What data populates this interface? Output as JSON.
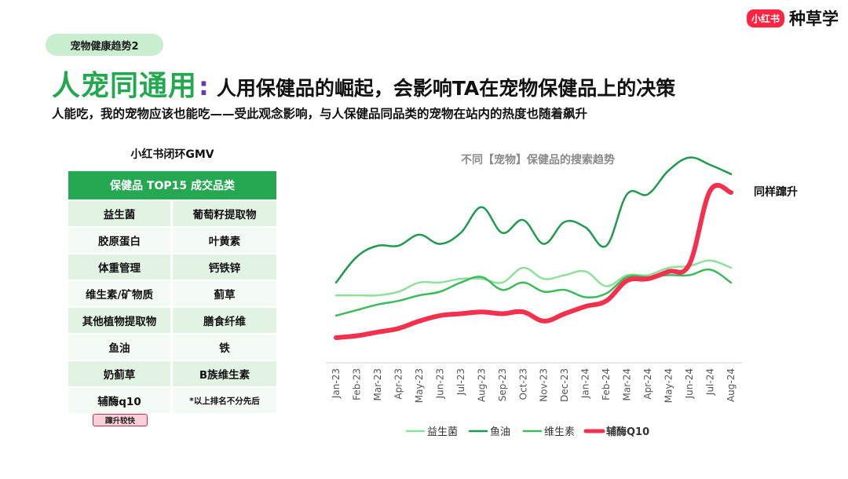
{
  "header": {
    "tag": "宠物健康趋势2",
    "title_highlight": "人宠同通用",
    "title_colon": ":",
    "title_main": "人用保健品的崛起，会影响TA在宠物保健品上的决策",
    "subtitle": "人能吃，我的宠物应该也能吃——受此观念影响，与人保健品同品类的宠物在站内的热度也随着飙升"
  },
  "brand": {
    "badge": "小红书",
    "text": "种草学"
  },
  "gmv_table": {
    "caption": "小红书闭环GMV",
    "header": "保健品 TOP15 成交品类",
    "rows": [
      [
        "益生菌",
        "葡萄籽提取物"
      ],
      [
        "胶原蛋白",
        "叶黄素"
      ],
      [
        "体重管理",
        "钙铁锌"
      ],
      [
        "维生素/矿物质",
        "蓟草"
      ],
      [
        "其他植物提取物",
        "膳食纤维"
      ],
      [
        "鱼油",
        "铁"
      ],
      [
        "奶蓟草",
        "B族维生素"
      ],
      [
        "辅酶q10",
        "*以上排名不分先后"
      ]
    ],
    "pill": "蹿升较快"
  },
  "colors": {
    "probiotic": "#8ee09a",
    "fish_oil": "#1f9a4e",
    "vitamin": "#3dbb5c",
    "coq10": "#f5304e"
  },
  "chart_data": {
    "type": "line",
    "title": "不同【宠物】保健品的搜索趋势",
    "annotation": "同样蹿升",
    "xlabel": "",
    "ylabel": "",
    "x": [
      "Jan-23",
      "Feb-23",
      "Mar-23",
      "Apr-23",
      "May-23",
      "Jun-23",
      "Jul-23",
      "Aug-23",
      "Sep-23",
      "Oct-23",
      "Nov-23",
      "Dec-23",
      "Jan-24",
      "Feb-24",
      "Mar-24",
      "Apr-24",
      "May-24",
      "Jun-24",
      "Jul-24",
      "Aug-24"
    ],
    "ylim": [
      0,
      100
    ],
    "grid": false,
    "legend": "bottom",
    "series": [
      {
        "name": "益生菌",
        "color_key": "probiotic",
        "values": [
          29,
          29,
          29,
          31,
          36,
          36,
          38,
          38,
          36,
          44,
          38,
          40,
          42,
          34,
          40,
          40,
          44,
          45,
          48,
          44
        ]
      },
      {
        "name": "鱼油",
        "color_key": "fish_oil",
        "values": [
          36,
          50,
          56,
          56,
          62,
          57,
          63,
          77,
          63,
          70,
          57,
          69,
          66,
          56,
          84,
          84,
          97,
          104,
          100,
          95
        ]
      },
      {
        "name": "维生素",
        "color_key": "vitamin",
        "values": [
          18,
          21,
          24,
          26,
          29,
          31,
          36,
          39,
          32,
          36,
          31,
          32,
          28,
          30,
          39,
          39,
          40,
          40,
          43,
          36
        ]
      },
      {
        "name": "辅酶Q10",
        "color_key": "coq10",
        "values": [
          6,
          7,
          9,
          11,
          15,
          18,
          19,
          20,
          19,
          20,
          15,
          19,
          23,
          26,
          37,
          38,
          42,
          46,
          86,
          85
        ]
      }
    ]
  }
}
